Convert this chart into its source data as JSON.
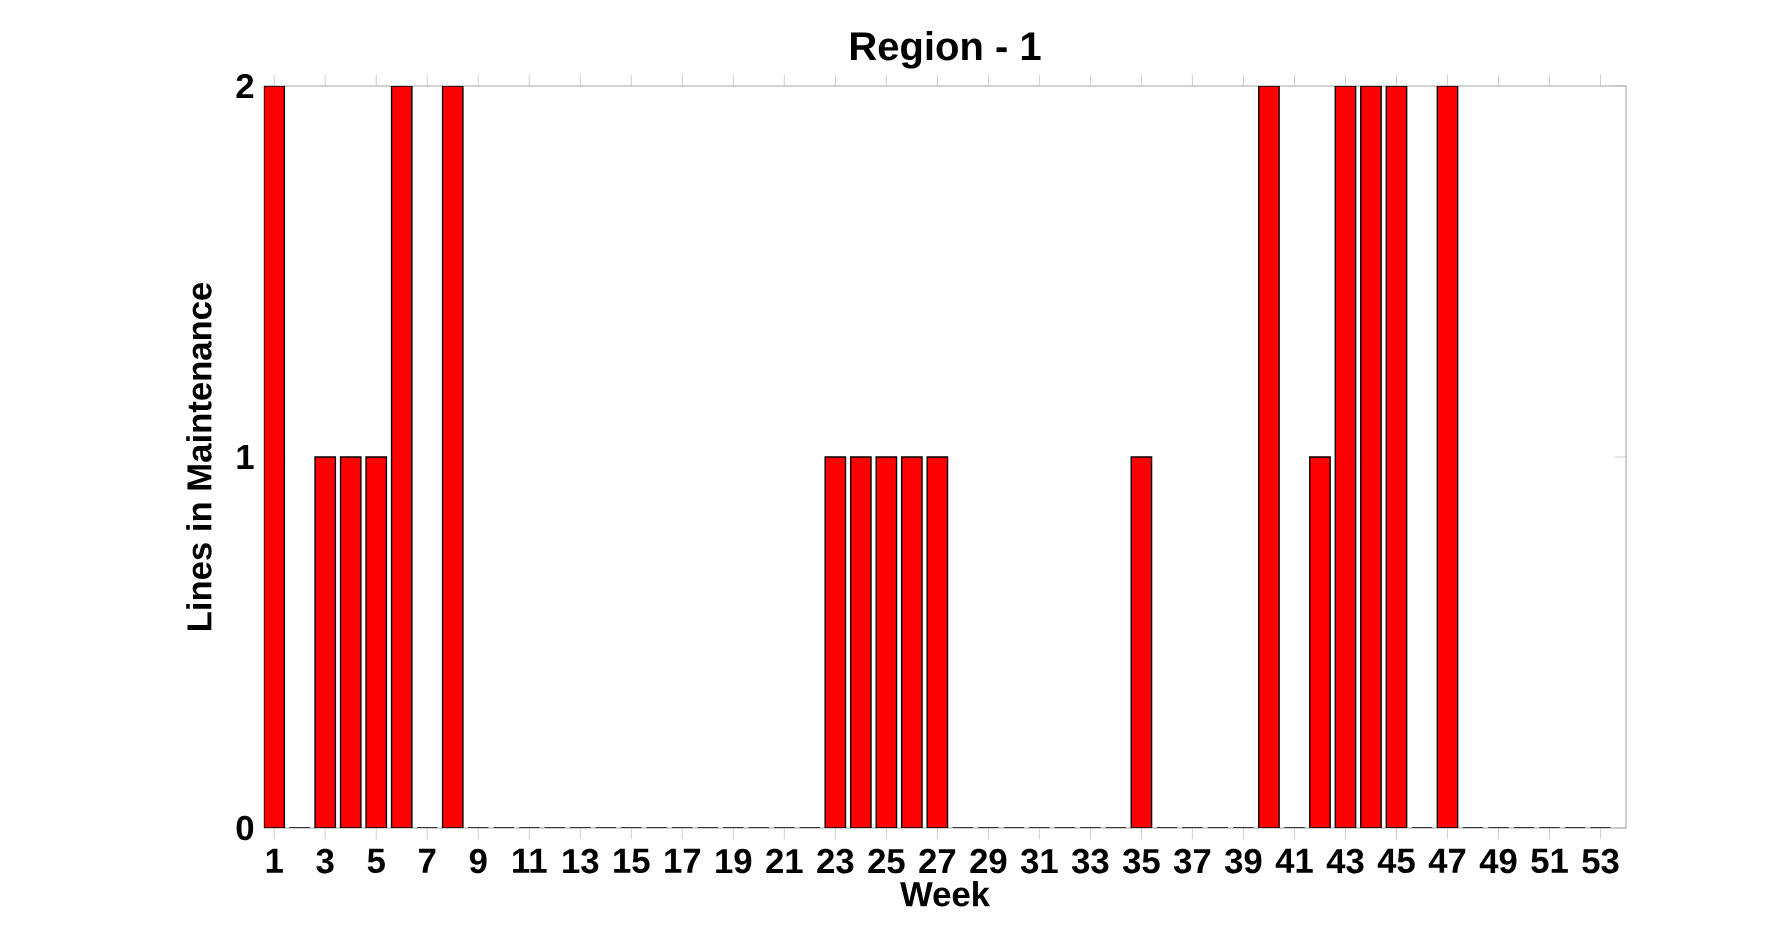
{
  "chart_data": {
    "type": "bar",
    "title": "Region - 1",
    "xlabel": "Week",
    "ylabel": "Lines in Maintenance",
    "x": [
      1,
      2,
      3,
      4,
      5,
      6,
      7,
      8,
      9,
      10,
      11,
      12,
      13,
      14,
      15,
      16,
      17,
      18,
      19,
      20,
      21,
      22,
      23,
      24,
      25,
      26,
      27,
      28,
      29,
      30,
      31,
      32,
      33,
      34,
      35,
      36,
      37,
      38,
      39,
      40,
      41,
      42,
      43,
      44,
      45,
      46,
      47,
      48,
      49,
      50,
      51,
      52,
      53
    ],
    "values": [
      2,
      0,
      1,
      1,
      1,
      2,
      0,
      2,
      0,
      0,
      0,
      0,
      0,
      0,
      0,
      0,
      0,
      0,
      0,
      0,
      0,
      0,
      1,
      1,
      1,
      1,
      1,
      0,
      0,
      0,
      0,
      0,
      0,
      0,
      1,
      0,
      0,
      0,
      0,
      2,
      0,
      1,
      2,
      2,
      2,
      0,
      2,
      0,
      0,
      0,
      0,
      0,
      0
    ],
    "color": "#ff0000",
    "xlim": [
      0.6,
      54
    ],
    "xticks": [
      1,
      3,
      5,
      7,
      9,
      11,
      13,
      15,
      17,
      19,
      21,
      23,
      25,
      27,
      29,
      31,
      33,
      35,
      37,
      39,
      41,
      43,
      45,
      47,
      49,
      51,
      53
    ],
    "ylim": [
      0,
      2
    ],
    "yticks": [
      0,
      1,
      2
    ]
  }
}
